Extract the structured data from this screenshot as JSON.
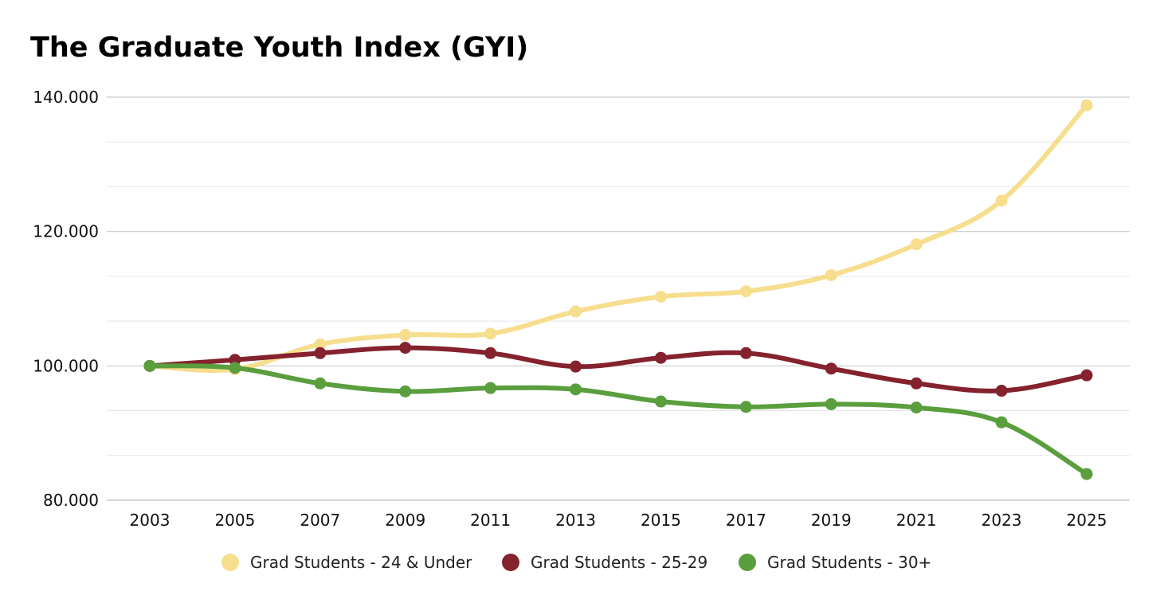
{
  "chart_data": {
    "type": "line",
    "title": "The Graduate Youth Index (GYI)",
    "xlabel": "",
    "ylabel": "",
    "x": [
      "2003",
      "2005",
      "2007",
      "2009",
      "2011",
      "2013",
      "2015",
      "2017",
      "2019",
      "2021",
      "2023",
      "2025"
    ],
    "ylim": [
      80,
      140
    ],
    "y_ticks": [
      80,
      100,
      120,
      140
    ],
    "y_tick_labels": [
      "80.000",
      "100.000",
      "120.000",
      "140.000"
    ],
    "y_minor_step": 6.667,
    "grid": true,
    "legend_position": "bottom",
    "series": [
      {
        "name": "Grad Students - 24 & Under",
        "color": "#F7DE8E",
        "values": [
          100.0,
          99.5,
          103.2,
          104.6,
          104.8,
          108.1,
          110.3,
          111.1,
          113.5,
          118.1,
          124.6,
          138.8
        ]
      },
      {
        "name": "Grad Students - 25-29",
        "color": "#84222E",
        "values": [
          100.0,
          100.9,
          101.9,
          102.7,
          101.9,
          99.9,
          101.2,
          101.9,
          99.6,
          97.4,
          96.3,
          98.6
        ]
      },
      {
        "name": "Grad Students - 30+",
        "color": "#5A9E3E",
        "values": [
          100.0,
          99.7,
          97.4,
          96.2,
          96.7,
          96.5,
          94.7,
          93.9,
          94.3,
          93.8,
          91.6,
          83.9
        ]
      }
    ]
  }
}
